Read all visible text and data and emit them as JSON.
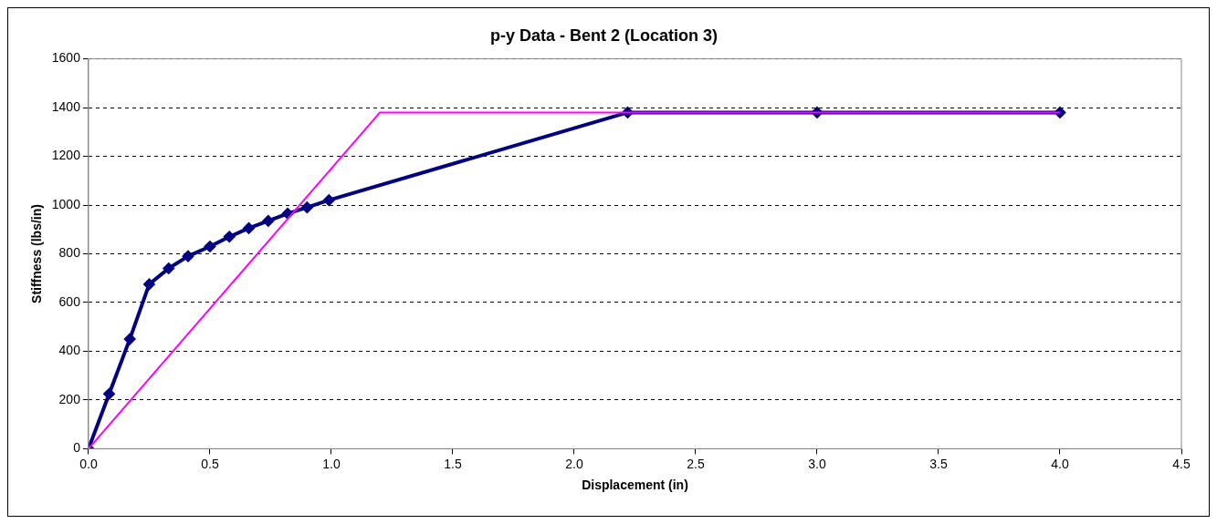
{
  "chart_data": {
    "type": "line",
    "title": "p-y Data - Bent 2 (Location 3)",
    "xlabel": "Displacement (in)",
    "ylabel": "Stiffness (lbs/in)",
    "series": [
      {
        "color": "#000080",
        "marker": "diamond",
        "x": [
          0,
          0.085,
          0.17,
          0.25,
          0.33,
          0.41,
          0.5,
          0.58,
          0.66,
          0.74,
          0.82,
          0.9,
          0.99,
          2.22,
          3.0,
          4.0
        ],
        "values": [
          0,
          225,
          450,
          675,
          740,
          790,
          830,
          870,
          905,
          935,
          965,
          990,
          1020,
          1380,
          1380,
          1380
        ]
      },
      {
        "color": "#ff00ff",
        "marker": "none",
        "x": [
          0,
          1.2,
          4.0
        ],
        "values": [
          0,
          1380,
          1380
        ]
      }
    ],
    "xlim": [
      0,
      4.5
    ],
    "xticks": [
      {
        "value": 0,
        "label": "0.0"
      },
      {
        "value": 0.5,
        "label": "0.5"
      },
      {
        "value": 1,
        "label": "1.0"
      },
      {
        "value": 1.5,
        "label": "1.5"
      },
      {
        "value": 2,
        "label": "2.0"
      },
      {
        "value": 2.5,
        "label": "2.5"
      },
      {
        "value": 3,
        "label": "3.0"
      },
      {
        "value": 3.5,
        "label": "3.5"
      },
      {
        "value": 4,
        "label": "4.0"
      },
      {
        "value": 4.5,
        "label": "4.5"
      }
    ],
    "ylim": [
      0,
      1600
    ],
    "yticks": [
      0,
      200,
      400,
      600,
      800,
      1000,
      1200,
      1400,
      1600
    ],
    "grid": "y",
    "line_style": "solid",
    "legend": false
  }
}
